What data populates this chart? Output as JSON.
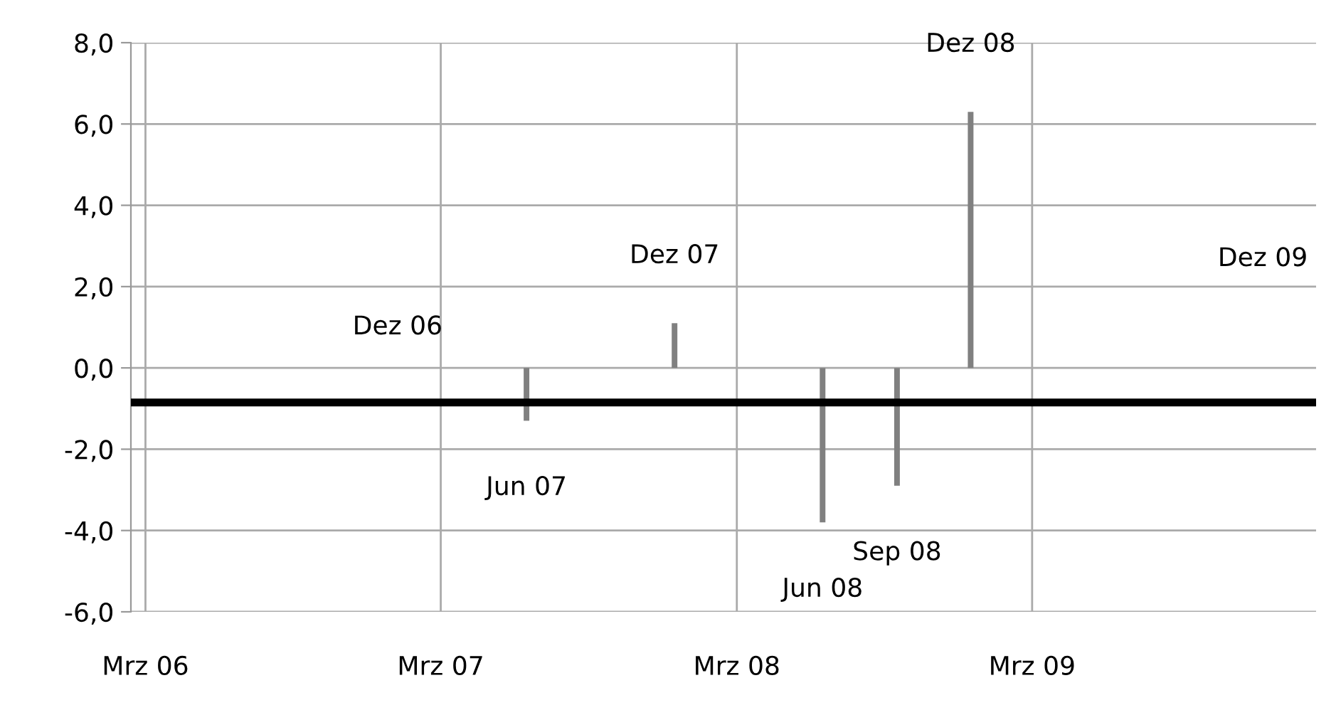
{
  "chart_data": {
    "type": "bar",
    "x": [
      "2007-06-15",
      "2007-12-15",
      "2008-06-15",
      "2008-09-15",
      "2008-12-15"
    ],
    "values": [
      -1.3,
      1.1,
      -3.8,
      -2.9,
      6.3
    ],
    "value_labels": [
      "Jun 07",
      "Dez 07",
      "Jun 08",
      "Sep 08",
      "Dez 08"
    ],
    "color": "#808080",
    "xlim": [
      "2006-02-11",
      "2010-02-15"
    ],
    "xticks": [
      {
        "value": "2006-03-01",
        "label": "Mrz 06"
      },
      {
        "value": "2007-03-01",
        "label": "Mrz 07"
      },
      {
        "value": "2008-03-01",
        "label": "Mrz 08"
      },
      {
        "value": "2009-03-01",
        "label": "Mrz 09"
      }
    ],
    "ylim": [
      -6,
      8
    ],
    "yticks": [
      {
        "value": -6,
        "label": "-6,0"
      },
      {
        "value": -4,
        "label": "-4,0"
      },
      {
        "value": -2,
        "label": "-2,0"
      },
      {
        "value": 0,
        "label": "0,0"
      },
      {
        "value": 2,
        "label": "2,0"
      },
      {
        "value": 4,
        "label": "4,0"
      },
      {
        "value": 6,
        "label": "6,0"
      },
      {
        "value": 8,
        "label": "8,0"
      }
    ],
    "grid": true,
    "ref_lines": [
      {
        "axis": "y",
        "value": -0.85,
        "color": "#000000"
      }
    ],
    "annotations": [
      "Dez 06",
      "Dez 09"
    ]
  }
}
